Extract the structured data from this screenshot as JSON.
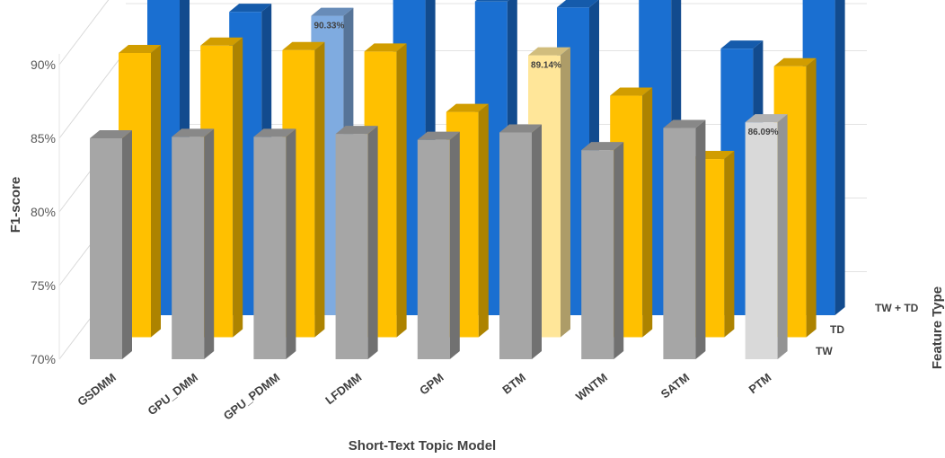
{
  "chart_data": {
    "type": "bar",
    "variant": "3d-column",
    "categories": [
      "GSDMM",
      "GPU_DMM",
      "GPU_PDMM",
      "LFDMM",
      "GPM",
      "BTM",
      "WNTM",
      "SATM",
      "PTM"
    ],
    "series": [
      {
        "name": "TW",
        "color": "#a6a6a6",
        "highlight_color": "#d9d9d9",
        "highlight_index": 8,
        "values": [
          85.0,
          85.1,
          85.1,
          85.3,
          84.9,
          85.4,
          84.2,
          85.7,
          86.09
        ]
      },
      {
        "name": "TD",
        "color": "#ffc000",
        "highlight_color": "#ffe699",
        "highlight_index": 5,
        "values": [
          89.3,
          89.8,
          89.5,
          89.4,
          85.3,
          89.14,
          86.4,
          82.1,
          88.4
        ]
      },
      {
        "name": "TW + TD",
        "color": "#1a6fd1",
        "highlight_color": "#7fabe0",
        "highlight_index": 2,
        "values": [
          92.1,
          90.6,
          90.33,
          91.7,
          91.3,
          90.9,
          92.2,
          88.1,
          91.6
        ]
      }
    ],
    "data_labels": [
      "90.33%",
      "89.14%",
      "86.09%"
    ],
    "y_ticks": [
      "70%",
      "75%",
      "80%",
      "85%",
      "90%"
    ],
    "ylim": [
      70,
      92.5
    ],
    "xlabel": "Short-Text Topic Model",
    "ylabel": "F1-score",
    "zlabel": "Feature Type",
    "grid": true
  }
}
